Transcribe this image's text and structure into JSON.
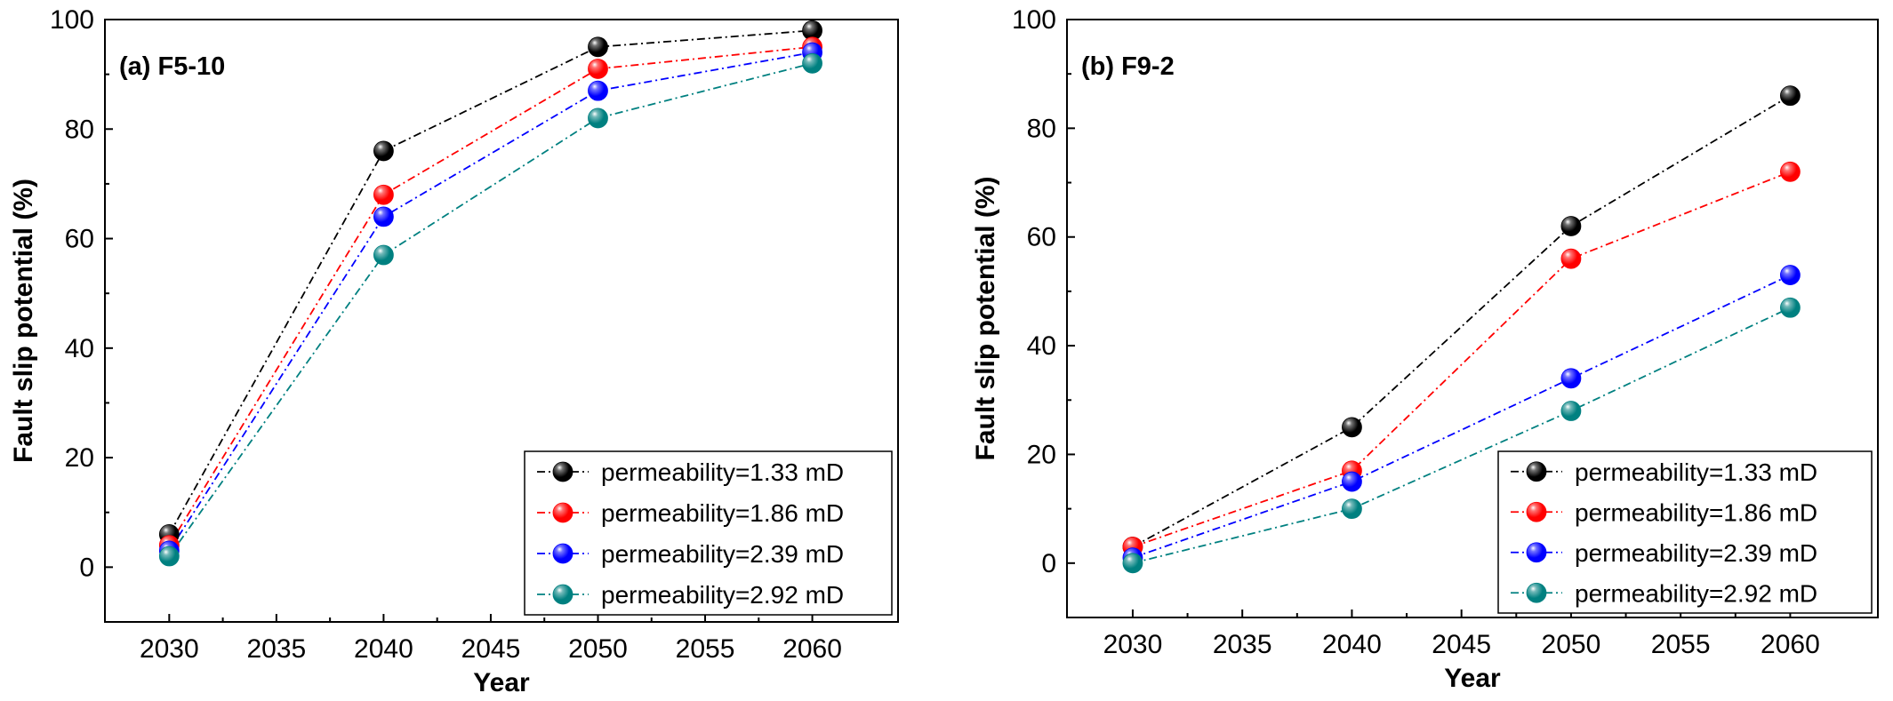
{
  "chart_data": [
    {
      "type": "line",
      "title": "(a) F5-10",
      "xlabel": "Year",
      "ylabel": "Fault slip potential (%)",
      "xlim": [
        2027,
        2064
      ],
      "ylim": [
        -10,
        100
      ],
      "xticks": [
        2030,
        2035,
        2040,
        2045,
        2050,
        2055,
        2060
      ],
      "yticks": [
        0,
        20,
        40,
        60,
        80,
        100
      ],
      "x": [
        2030,
        2040,
        2050,
        2060
      ],
      "series": [
        {
          "name": "permeability=1.33 mD",
          "color": "#000000",
          "values": [
            6,
            76,
            95,
            98
          ]
        },
        {
          "name": "permeability=1.86 mD",
          "color": "#ff0000",
          "values": [
            4,
            68,
            91,
            95
          ]
        },
        {
          "name": "permeability=2.39 mD",
          "color": "#0000ff",
          "values": [
            3,
            64,
            87,
            94
          ]
        },
        {
          "name": "permeability=2.92 mD",
          "color": "#008080",
          "values": [
            2,
            57,
            82,
            92
          ]
        }
      ],
      "legend_position": "bottom-right"
    },
    {
      "type": "line",
      "title": "(b) F9-2",
      "xlabel": "Year",
      "ylabel": "Fault slip potential (%)",
      "xlim": [
        2027,
        2064
      ],
      "ylim": [
        -10,
        100
      ],
      "xticks": [
        2030,
        2035,
        2040,
        2045,
        2050,
        2055,
        2060
      ],
      "yticks": [
        0,
        20,
        40,
        60,
        80,
        100
      ],
      "x": [
        2030,
        2040,
        2050,
        2060
      ],
      "series": [
        {
          "name": "permeability=1.33 mD",
          "color": "#000000",
          "values": [
            3,
            25,
            62,
            86
          ]
        },
        {
          "name": "permeability=1.86 mD",
          "color": "#ff0000",
          "values": [
            3,
            17,
            56,
            72
          ]
        },
        {
          "name": "permeability=2.39 mD",
          "color": "#0000ff",
          "values": [
            1,
            15,
            34,
            53
          ]
        },
        {
          "name": "permeability=2.92 mD",
          "color": "#008080",
          "values": [
            0,
            10,
            28,
            47
          ]
        }
      ],
      "legend_position": "bottom-right"
    }
  ]
}
